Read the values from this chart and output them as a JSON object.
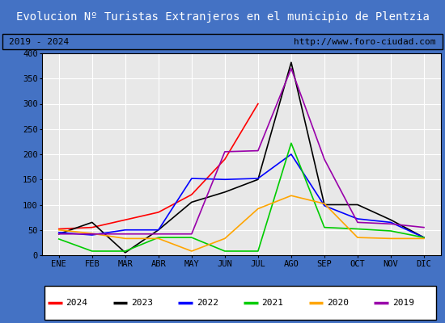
{
  "title": "Evolucion Nº Turistas Extranjeros en el municipio de Plentzia",
  "subtitle_left": "2019 - 2024",
  "subtitle_right": "http://www.foro-ciudad.com",
  "months": [
    "ENE",
    "FEB",
    "MAR",
    "ABR",
    "MAY",
    "JUN",
    "JUL",
    "AGO",
    "SEP",
    "OCT",
    "NOV",
    "DIC"
  ],
  "ylim": [
    0,
    400
  ],
  "yticks": [
    0,
    50,
    100,
    150,
    200,
    250,
    300,
    350,
    400
  ],
  "series": {
    "2024": {
      "color": "#ff0000",
      "data": [
        52,
        55,
        70,
        85,
        120,
        190,
        300,
        null,
        null,
        null,
        null,
        null
      ]
    },
    "2023": {
      "color": "#000000",
      "data": [
        42,
        65,
        5,
        50,
        105,
        125,
        150,
        382,
        100,
        100,
        70,
        35
      ]
    },
    "2022": {
      "color": "#0000ff",
      "data": [
        45,
        40,
        50,
        50,
        152,
        150,
        152,
        200,
        98,
        72,
        65,
        35
      ]
    },
    "2021": {
      "color": "#00cc00",
      "data": [
        32,
        8,
        8,
        35,
        35,
        8,
        8,
        222,
        55,
        52,
        48,
        35
      ]
    },
    "2020": {
      "color": "#ffa500",
      "data": [
        50,
        43,
        33,
        33,
        8,
        33,
        92,
        118,
        102,
        35,
        33,
        33
      ]
    },
    "2019": {
      "color": "#9900aa",
      "data": [
        42,
        42,
        42,
        42,
        42,
        205,
        207,
        370,
        190,
        65,
        62,
        55
      ]
    }
  },
  "title_bg": "#4472c4",
  "title_color": "#ffffff",
  "subtitle_bg": "#e8e8e8",
  "subtitle_color": "#000000",
  "plot_bg": "#e8e8e8",
  "grid_color": "#ffffff",
  "border_color": "#000000",
  "legend_order": [
    "2024",
    "2023",
    "2022",
    "2021",
    "2020",
    "2019"
  ],
  "title_fontsize": 10,
  "tick_fontsize": 7.5,
  "legend_fontsize": 8
}
